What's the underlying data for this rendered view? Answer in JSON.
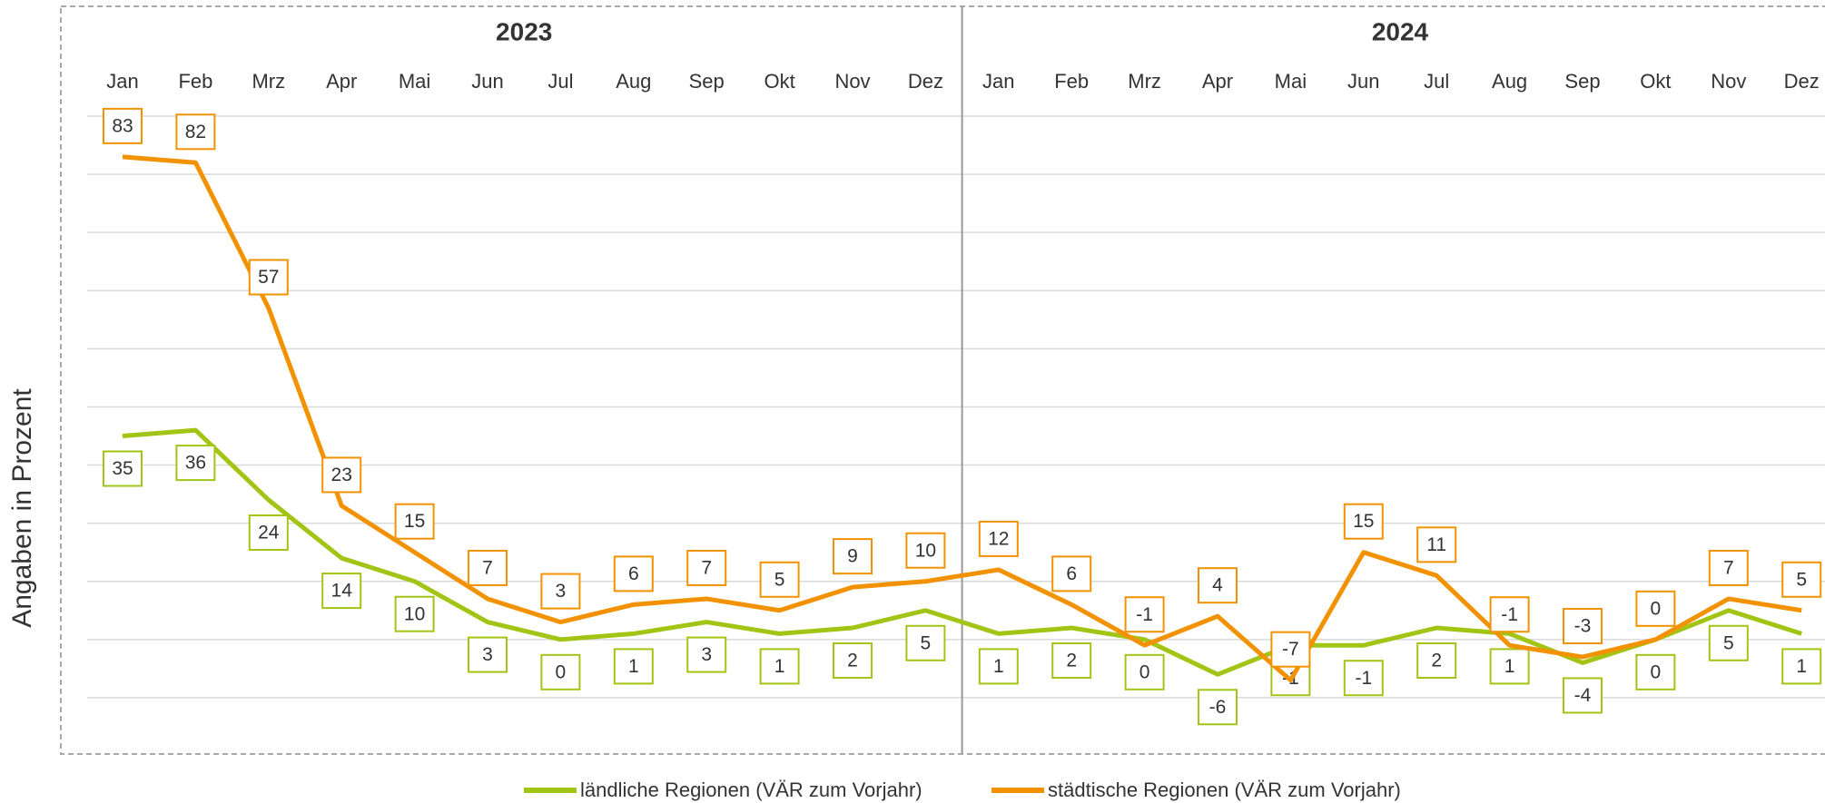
{
  "chart_data": {
    "type": "line",
    "y_label": "Angaben in Prozent",
    "groups": [
      "2023",
      "2024"
    ],
    "categories": [
      "Jan",
      "Feb",
      "Mrz",
      "Apr",
      "Mai",
      "Jun",
      "Jul",
      "Aug",
      "Sep",
      "Okt",
      "Nov",
      "Dez",
      "Jan",
      "Feb",
      "Mrz",
      "Apr",
      "Mai",
      "Jun",
      "Jul",
      "Aug",
      "Sep",
      "Okt",
      "Nov",
      "Dez"
    ],
    "series": [
      {
        "name": "ländliche Regionen (VÄR zum Vorjahr)",
        "color": "#a2c515",
        "values": [
          35,
          36,
          24,
          14,
          10,
          3,
          0,
          1,
          3,
          1,
          2,
          5,
          1,
          2,
          0,
          -6,
          -1,
          -1,
          2,
          1,
          -4,
          0,
          5,
          1
        ]
      },
      {
        "name": "städtische Regionen (VÄR zum Vorjahr)",
        "color": "#f39200",
        "values": [
          83,
          82,
          57,
          23,
          15,
          7,
          3,
          6,
          7,
          5,
          9,
          10,
          12,
          6,
          -1,
          4,
          -7,
          15,
          11,
          -1,
          -3,
          0,
          7,
          5
        ]
      }
    ],
    "ylim": [
      -20,
      90
    ],
    "yticks": [
      -10,
      0,
      10,
      20,
      30,
      40,
      50,
      60,
      70,
      80,
      90
    ],
    "grid": true,
    "legend": "bottom"
  }
}
